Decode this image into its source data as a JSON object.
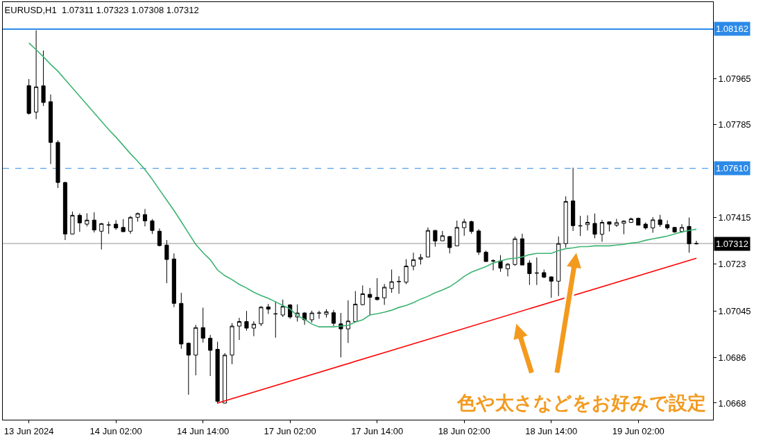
{
  "chart_data": {
    "type": "candlestick",
    "title": "EURUSD,H1  1.07311 1.07323 1.07308 1.07312",
    "categories": [
      "13 Jun 2024",
      null,
      null,
      null,
      null,
      null,
      null,
      null,
      null,
      null,
      null,
      null,
      "14 Jun 02:00",
      null,
      null,
      null,
      null,
      null,
      null,
      null,
      null,
      null,
      null,
      null,
      "14 Jun 14:00",
      null,
      null,
      null,
      null,
      null,
      null,
      null,
      null,
      null,
      null,
      null,
      "17 Jun 02:00",
      null,
      null,
      null,
      null,
      null,
      null,
      null,
      null,
      null,
      null,
      null,
      "17 Jun 14:00",
      null,
      null,
      null,
      null,
      null,
      null,
      null,
      null,
      null,
      null,
      null,
      "18 Jun 02:00",
      null,
      null,
      null,
      null,
      null,
      null,
      null,
      null,
      null,
      null,
      null,
      "18 Jun 14:00",
      null,
      null,
      null,
      null,
      null,
      null,
      null,
      null,
      null,
      null,
      null,
      "19 Jun 02:00",
      null,
      null,
      null,
      null,
      null,
      null,
      null,
      null
    ],
    "ohlc": [
      [
        1.07938,
        1.07964,
        1.07823,
        1.07828
      ],
      [
        1.07833,
        1.08157,
        1.07805,
        1.07933
      ],
      [
        1.07937,
        1.08077,
        1.07857,
        1.07871
      ],
      [
        1.07874,
        1.07903,
        1.07627,
        1.07713
      ],
      [
        1.07713,
        1.07721,
        1.07532,
        1.07554
      ],
      [
        1.07554,
        1.07557,
        1.07326,
        1.0735
      ],
      [
        1.0735,
        1.07439,
        1.07348,
        1.07424
      ],
      [
        1.07424,
        1.07432,
        1.07359,
        1.07394
      ],
      [
        1.07389,
        1.07432,
        1.0738,
        1.07405
      ],
      [
        1.07405,
        1.07436,
        1.07356,
        1.07366
      ],
      [
        1.07361,
        1.07394,
        1.07289,
        1.07391
      ],
      [
        1.07385,
        1.07399,
        1.0735,
        1.07386
      ],
      [
        1.07389,
        1.07405,
        1.07366,
        1.07374
      ],
      [
        1.07376,
        1.07409,
        1.07359,
        1.07359
      ],
      [
        1.07361,
        1.07421,
        1.07351,
        1.07416
      ],
      [
        1.07416,
        1.07435,
        1.07399,
        1.07431
      ],
      [
        1.07427,
        1.07449,
        1.0738,
        1.07402
      ],
      [
        1.07402,
        1.07409,
        1.0735,
        1.07364
      ],
      [
        1.07361,
        1.07372,
        1.07301,
        1.07304
      ],
      [
        1.07306,
        1.07326,
        1.07155,
        1.07249
      ],
      [
        1.07251,
        1.07273,
        1.0706,
        1.07075
      ],
      [
        1.07075,
        1.07117,
        1.06895,
        1.06914
      ],
      [
        1.06917,
        1.0692,
        1.06713,
        1.0687
      ],
      [
        1.0687,
        1.0699,
        1.0679,
        1.06979
      ],
      [
        1.06979,
        1.07058,
        1.0692,
        1.06937
      ],
      [
        1.06937,
        1.0695,
        1.06787,
        1.06889
      ],
      [
        1.06893,
        1.06923,
        1.06678,
        1.06687
      ],
      [
        1.0668,
        1.06878,
        1.06679,
        1.0687
      ],
      [
        1.0687,
        1.06997,
        1.06834,
        1.06985
      ],
      [
        1.06985,
        1.07018,
        1.0693,
        1.07003
      ],
      [
        1.07003,
        1.07045,
        1.06967,
        1.06977
      ],
      [
        1.06977,
        1.07004,
        1.06945,
        1.06993
      ],
      [
        1.06994,
        1.07064,
        1.06985,
        1.0706
      ],
      [
        1.07061,
        1.07073,
        1.07033,
        1.07052
      ],
      [
        1.07034,
        1.07083,
        1.06939,
        1.07033
      ],
      [
        1.07029,
        1.0709,
        1.07021,
        1.07063
      ],
      [
        1.07069,
        1.07072,
        1.07014,
        1.07021
      ],
      [
        1.07021,
        1.07071,
        1.07003,
        1.07037
      ],
      [
        1.07037,
        1.0704,
        1.0699,
        1.0701
      ],
      [
        1.0701,
        1.07046,
        1.06999,
        1.07037
      ],
      [
        1.07036,
        1.07046,
        1.07014,
        1.07037
      ],
      [
        1.07032,
        1.07052,
        1.07019,
        1.07042
      ],
      [
        1.07038,
        1.07049,
        1.06985,
        1.06996
      ],
      [
        1.06994,
        1.07037,
        1.06861,
        1.06974
      ],
      [
        1.06974,
        1.07087,
        1.06918,
        1.07005
      ],
      [
        1.07003,
        1.07124,
        1.06999,
        1.07072
      ],
      [
        1.0707,
        1.07146,
        1.07067,
        1.07113
      ],
      [
        1.07111,
        1.07136,
        1.07026,
        1.07099
      ],
      [
        1.07099,
        1.07175,
        1.07087,
        1.0709
      ],
      [
        1.07097,
        1.07152,
        1.07069,
        1.07139
      ],
      [
        1.07134,
        1.07209,
        1.07117,
        1.07161
      ],
      [
        1.07161,
        1.07183,
        1.07113,
        1.07162
      ],
      [
        1.07159,
        1.0725,
        1.07151,
        1.07223
      ],
      [
        1.07223,
        1.07276,
        1.07206,
        1.07248
      ],
      [
        1.0725,
        1.07271,
        1.07229,
        1.07257
      ],
      [
        1.07259,
        1.07376,
        1.07257,
        1.07364
      ],
      [
        1.07364,
        1.07366,
        1.073,
        1.07322
      ],
      [
        1.07323,
        1.07362,
        1.07323,
        1.07343
      ],
      [
        1.0734,
        1.07342,
        1.07273,
        1.07296
      ],
      [
        1.07303,
        1.07403,
        1.07303,
        1.07376
      ],
      [
        1.07375,
        1.0741,
        1.07343,
        1.07398
      ],
      [
        1.07399,
        1.07403,
        1.07351,
        1.0736
      ],
      [
        1.07362,
        1.07369,
        1.07267,
        1.07278
      ],
      [
        1.07278,
        1.07284,
        1.0724,
        1.07241
      ],
      [
        1.07244,
        1.0725,
        1.07206,
        1.07243
      ],
      [
        1.07243,
        1.07266,
        1.072,
        1.07215
      ],
      [
        1.07212,
        1.07235,
        1.07182,
        1.0723
      ],
      [
        1.07229,
        1.0734,
        1.07224,
        1.07331
      ],
      [
        1.07331,
        1.07351,
        1.07227,
        1.07227
      ],
      [
        1.07235,
        1.07246,
        1.07148,
        1.07193
      ],
      [
        1.07196,
        1.07257,
        1.07148,
        1.07195
      ],
      [
        1.07197,
        1.07209,
        1.07175,
        1.07179
      ],
      [
        1.0718,
        1.07182,
        1.07097,
        1.07163
      ],
      [
        1.07163,
        1.0734,
        1.07104,
        1.07312
      ],
      [
        1.07312,
        1.07499,
        1.07296,
        1.07479
      ],
      [
        1.07481,
        1.07613,
        1.07362,
        1.07383
      ],
      [
        1.07383,
        1.07422,
        1.07342,
        1.07382
      ],
      [
        1.07387,
        1.07424,
        1.07364,
        1.07396
      ],
      [
        1.07392,
        1.07431,
        1.07333,
        1.07349
      ],
      [
        1.07349,
        1.07406,
        1.07319,
        1.07396
      ],
      [
        1.07398,
        1.07398,
        1.0736,
        1.07389
      ],
      [
        1.07385,
        1.0741,
        1.07378,
        1.07395
      ],
      [
        1.07392,
        1.07404,
        1.07349,
        1.07401
      ],
      [
        1.07396,
        1.07415,
        1.07394,
        1.0741
      ],
      [
        1.07412,
        1.07415,
        1.07384,
        1.07385
      ],
      [
        1.07389,
        1.07396,
        1.07367,
        1.07374
      ],
      [
        1.07374,
        1.07417,
        1.07355,
        1.07406
      ],
      [
        1.07406,
        1.07426,
        1.07378,
        1.07387
      ],
      [
        1.07387,
        1.07404,
        1.07367,
        1.07374
      ],
      [
        1.07376,
        1.07378,
        1.07355,
        1.07358
      ],
      [
        1.0736,
        1.07389,
        1.07355,
        1.07376
      ],
      [
        1.0738,
        1.07415,
        1.07276,
        1.07311
      ],
      [
        1.07311,
        1.07323,
        1.07308,
        1.07312
      ]
    ],
    "series": [
      {
        "type": "line",
        "color": "#3cb371",
        "values": [
          1.08107,
          1.0808,
          1.08052,
          1.08022,
          1.07995,
          1.07962,
          1.07929,
          1.07896,
          1.07863,
          1.0783,
          1.07797,
          1.07764,
          1.07734,
          1.07701,
          1.07668,
          1.07638,
          1.07605,
          1.07567,
          1.07525,
          1.07484,
          1.07443,
          1.07399,
          1.07353,
          1.07309,
          1.07276,
          1.07248,
          1.07207,
          1.07185,
          1.07169,
          1.0715,
          1.07136,
          1.07119,
          1.07106,
          1.07095,
          1.07081,
          1.07067,
          1.07053,
          1.07026,
          1.07012,
          1.06993,
          1.06982,
          1.06982,
          1.06982,
          1.06985,
          1.06988,
          1.07001,
          1.0701,
          1.07029,
          1.07034,
          1.0704,
          1.07048,
          1.07059,
          1.07067,
          1.07078,
          1.07092,
          1.07103,
          1.07117,
          1.07128,
          1.07141,
          1.0716,
          1.07182,
          1.07199,
          1.0721,
          1.07221,
          1.07235,
          1.07243,
          1.07251,
          1.07254,
          1.07259,
          1.07268,
          1.07273,
          1.07273,
          1.07273,
          1.07284,
          1.07292,
          1.07295,
          1.073,
          1.073,
          1.07303,
          1.07303,
          1.07303,
          1.07306,
          1.07309,
          1.07314,
          1.07317,
          1.07325,
          1.07331,
          1.07336,
          1.07342,
          1.0735,
          1.07358,
          1.07364,
          1.07369
        ]
      },
      {
        "type": "line",
        "color": "#ff0000",
        "values": [
          null,
          null,
          null,
          null,
          null,
          null,
          null,
          null,
          null,
          null,
          null,
          null,
          null,
          null,
          null,
          null,
          null,
          null,
          null,
          null,
          null,
          null,
          null,
          null,
          null,
          null,
          1.0668,
          null,
          null,
          null,
          null,
          null,
          null,
          null,
          null,
          null,
          null,
          null,
          null,
          null,
          null,
          null,
          null,
          null,
          null,
          null,
          null,
          null,
          null,
          null,
          null,
          null,
          null,
          null,
          null,
          null,
          null,
          null,
          null,
          null,
          null,
          null,
          null,
          null,
          null,
          null,
          null,
          null,
          null,
          null,
          null,
          null,
          null,
          null,
          null,
          null,
          null,
          null,
          null,
          null,
          null,
          null,
          null,
          null,
          null,
          null,
          null,
          null,
          null,
          null,
          null,
          null,
          1.07254
        ]
      }
    ],
    "ylim": [
      1.06614,
      1.08269
    ],
    "yticks": [
      1.0668,
      1.0686,
      1.07045,
      1.0723,
      1.07415,
      1.07785,
      1.07965
    ],
    "ref_lines": [
      {
        "axis": "y",
        "value": 1.08162,
        "label": "1.08162",
        "color": "#2b8ae8",
        "line_style": "solid"
      },
      {
        "axis": "y",
        "value": 1.0761,
        "label": "1.07610",
        "color": "#2b8ae8",
        "line_style": "dashed"
      },
      {
        "axis": "y",
        "value": 1.07312,
        "label": "1.07312",
        "color": "#c8c8c8",
        "line_style": "solid"
      }
    ],
    "annotations": [
      "色や太さなどをお好みで設定"
    ]
  }
}
